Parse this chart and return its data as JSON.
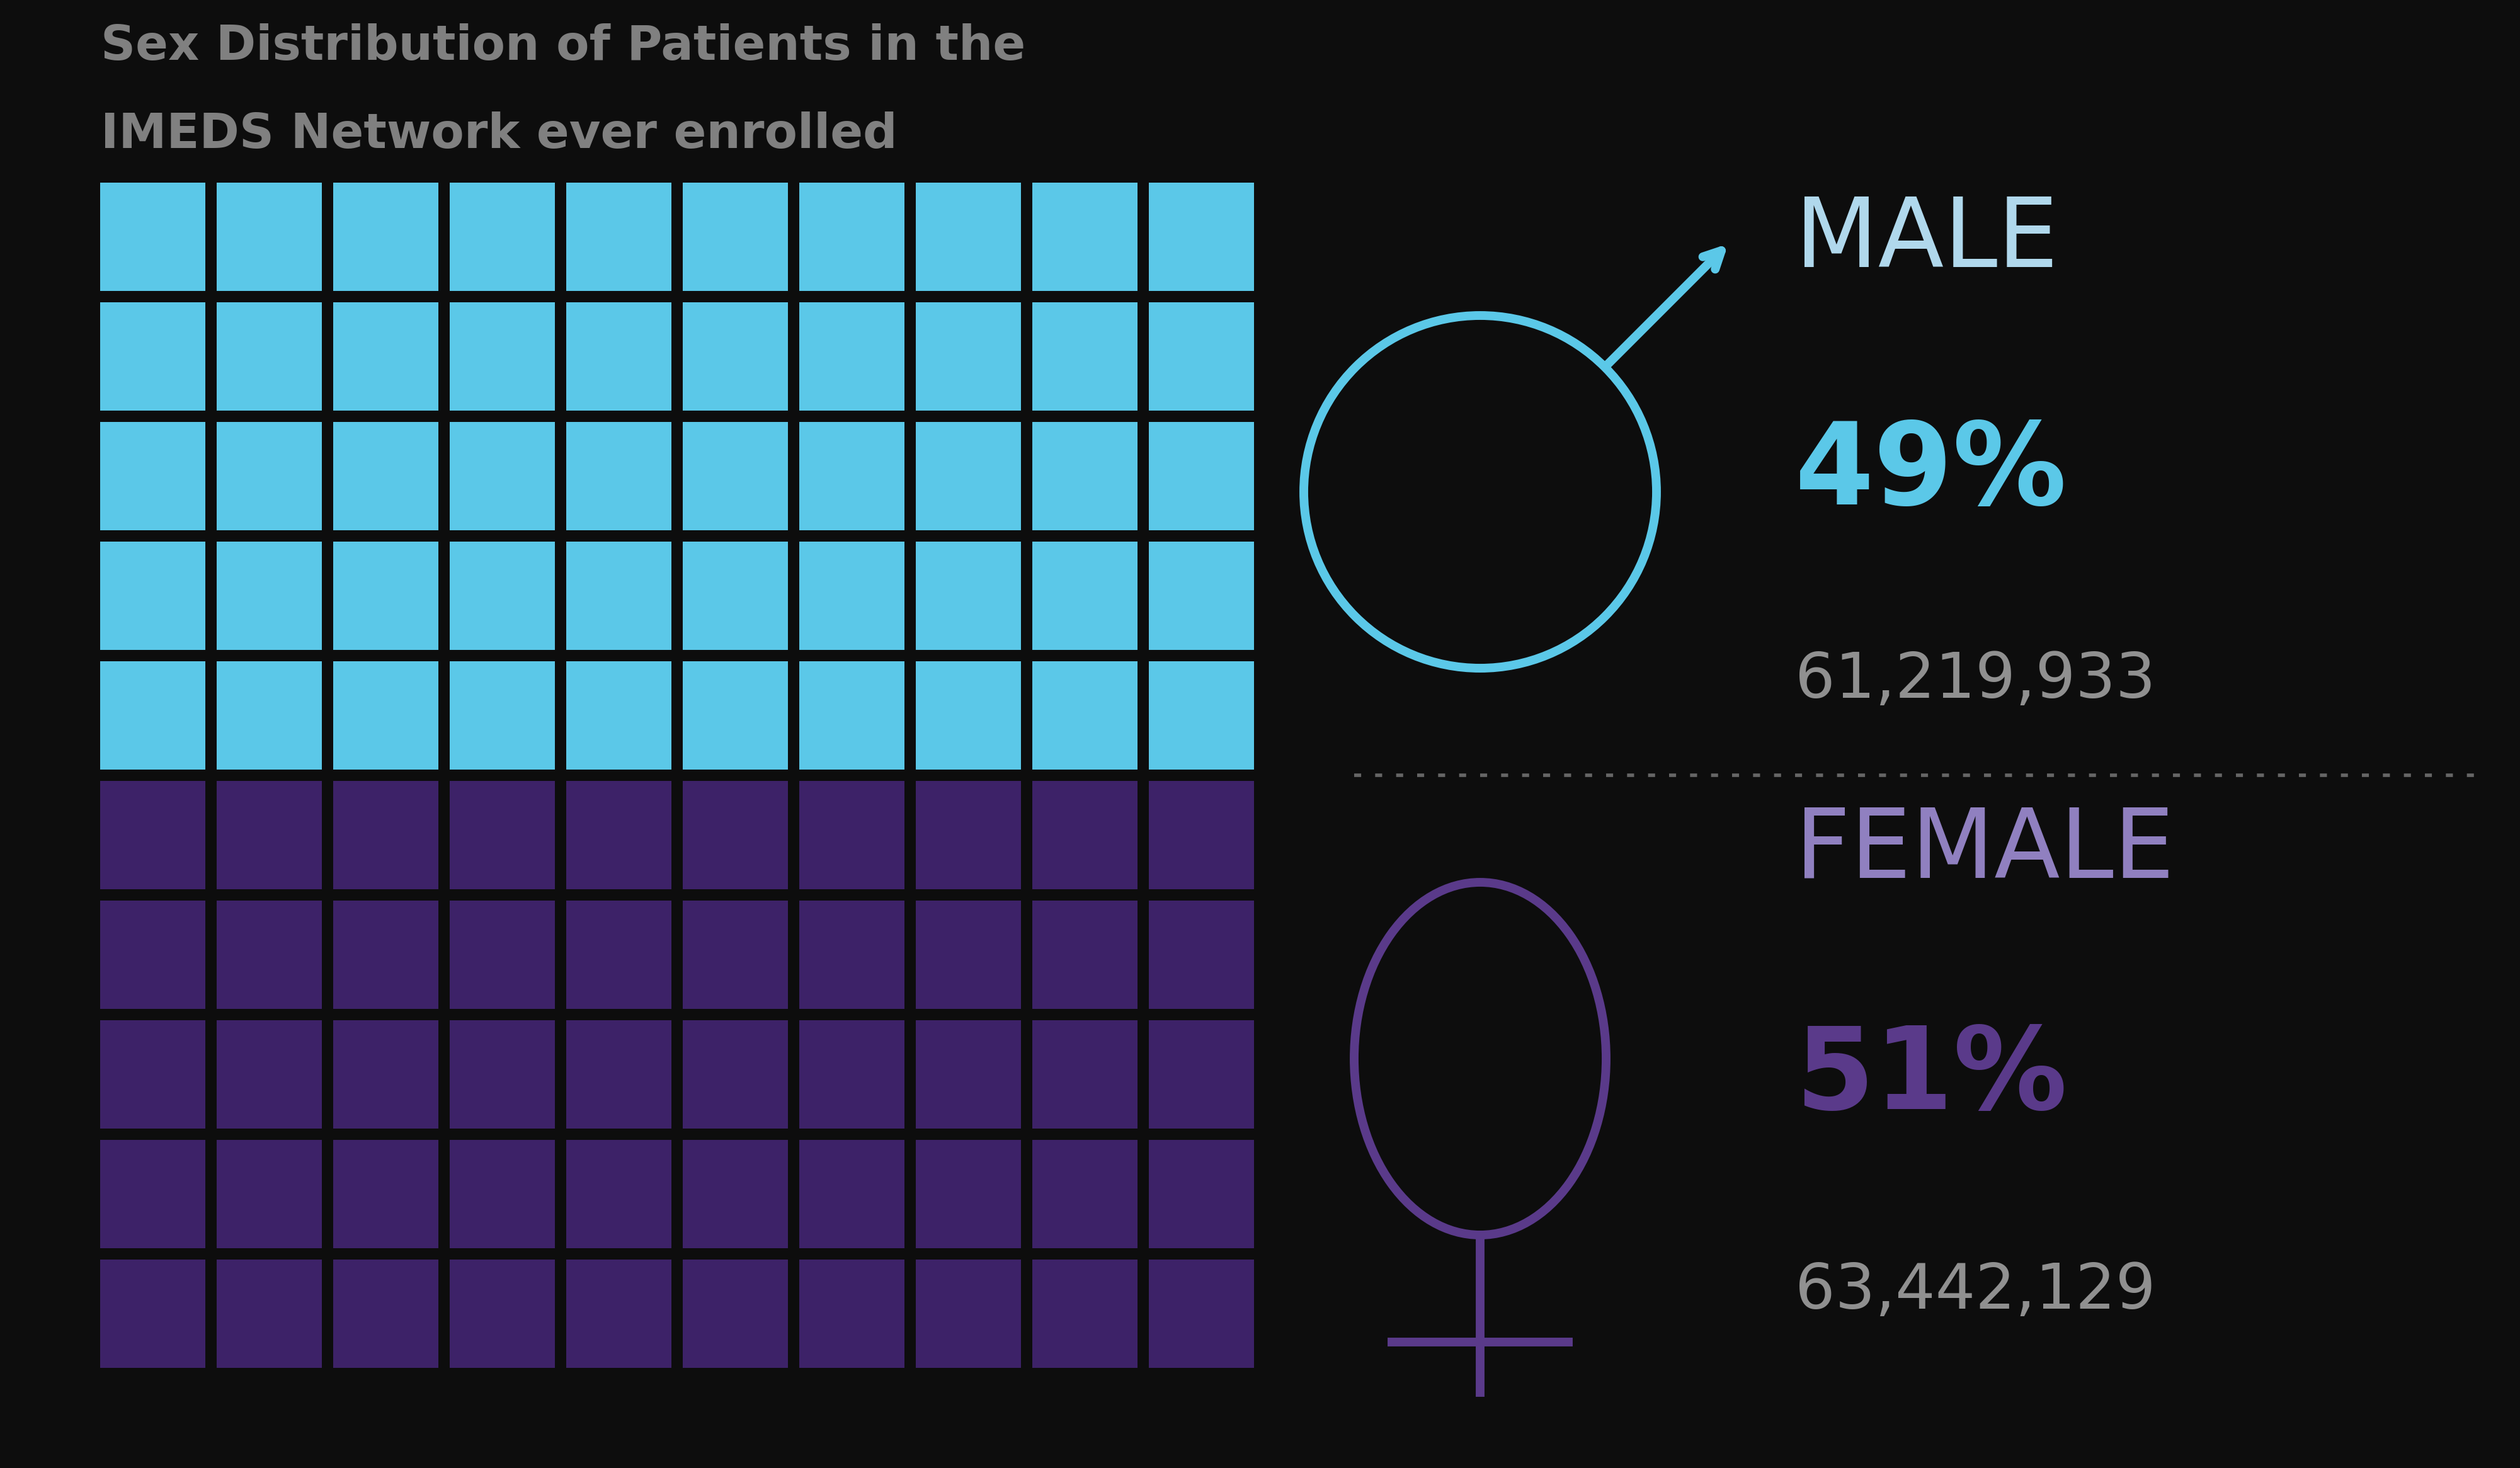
{
  "title_line1": "Sex Distribution of Patients in the",
  "title_line2": "IMEDS Network ever enrolled",
  "background_color": "#0d0d0d",
  "title_color": "#808080",
  "male_color": "#5bc8e8",
  "female_color": "#3d2268",
  "male_label": "MALE",
  "male_pct": "49%",
  "male_count": "61,219,933",
  "female_label": "FEMALE",
  "female_pct": "51%",
  "female_count": "63,442,129",
  "male_pct_color": "#5bc8e8",
  "female_pct_color": "#5a3a8a",
  "male_label_color": "#b0d8ec",
  "female_label_color": "#9080c0",
  "count_color": "#909090",
  "grid_rows": 10,
  "grid_cols": 10,
  "male_rows": 5,
  "female_rows": 5,
  "fig_w": 40.01,
  "fig_h": 23.31
}
